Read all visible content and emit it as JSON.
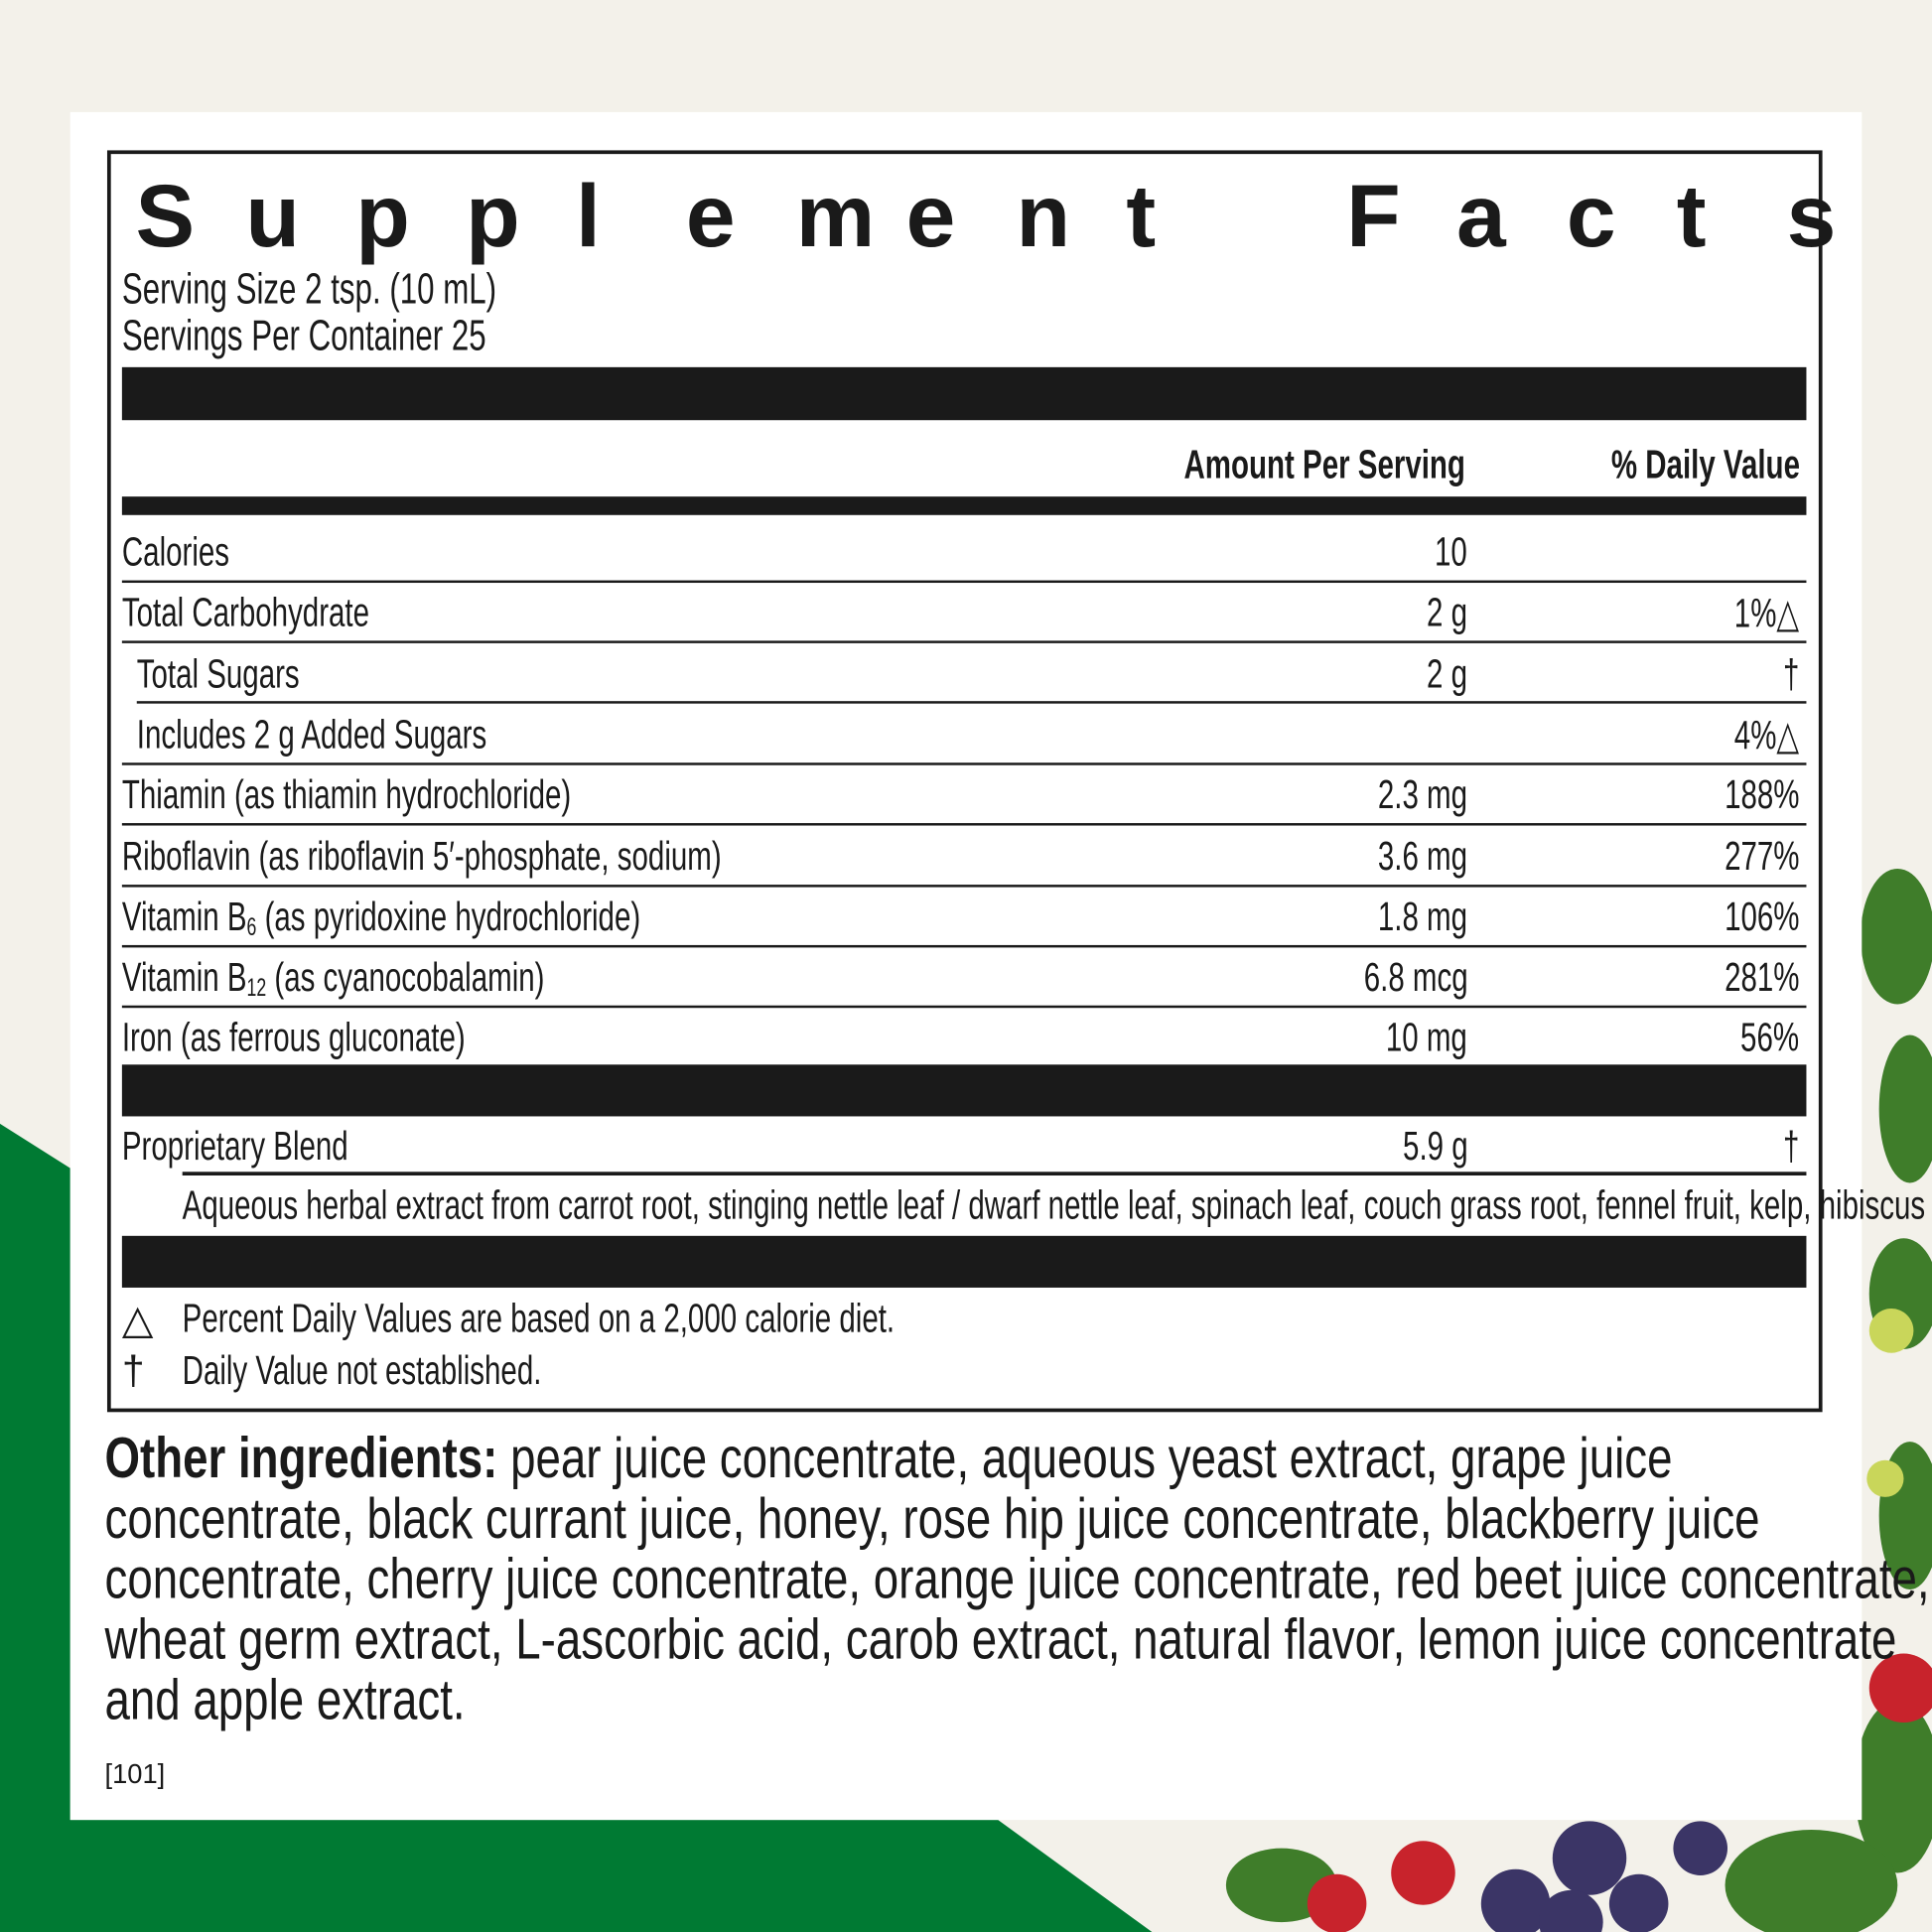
{
  "colors": {
    "background": "#f3f1ea",
    "green": "#007a33",
    "panel": "#ffffff",
    "ink": "#1a1a1a"
  },
  "title": "Supplement Facts",
  "serving_size": "Serving Size 2 tsp. (10 mL)",
  "servings_per_container": "Servings Per Container 25",
  "headers": {
    "amount": "Amount Per Serving",
    "daily_value": "% Daily Value"
  },
  "rows": [
    {
      "label": "Calories",
      "amount": "10",
      "dv": ""
    },
    {
      "label": "Total Carbohydrate",
      "amount": "2 g",
      "dv": "1%△"
    },
    {
      "label": "Total Sugars",
      "amount": "2 g",
      "dv": "†"
    },
    {
      "label": "Includes 2 g Added Sugars",
      "amount": "",
      "dv": "4%△"
    },
    {
      "label": "Thiamin (as thiamin hydrochloride)",
      "amount": "2.3 mg",
      "dv": "188%"
    },
    {
      "label": "Riboflavin (as riboflavin 5′-phosphate, sodium)",
      "amount": "3.6 mg",
      "dv": "277%"
    },
    {
      "label_pre": "Vitamin B",
      "label_sub": "6",
      "label_post": " (as pyridoxine hydrochloride)",
      "amount": "1.8 mg",
      "dv": "106%"
    },
    {
      "label_pre": "Vitamin B",
      "label_sub": "12",
      "label_post": " (as cyanocobalamin)",
      "amount": "6.8 mcg",
      "dv": "281%"
    },
    {
      "label": "Iron (as ferrous gluconate)",
      "amount": "10 mg",
      "dv": "56%"
    }
  ],
  "blend": {
    "label": "Proprietary Blend",
    "amount": "5.9 g",
    "dv": "†",
    "description": "Aqueous herbal extract from carrot root, stinging nettle leaf / dwarf nettle leaf, spinach leaf, couch grass root, fennel fruit, kelp, hibiscus flower"
  },
  "footnotes": [
    {
      "symbol": "△",
      "text": "Percent Daily Values are based on a 2,000 calorie diet."
    },
    {
      "symbol": "†",
      "text": "Daily Value not established."
    }
  ],
  "other_ingredients": {
    "label": "Other ingredients:",
    "lines": [
      " pear juice concentrate, aqueous yeast extract, grape juice",
      "concentrate, black currant juice, honey, rose hip juice concentrate, blackberry juice",
      "concentrate, cherry juice concentrate, orange juice concentrate, red beet juice concentrate,",
      "wheat germ extract, L-ascorbic acid, carob extract, natural flavor, lemon juice concentrate",
      "and apple extract."
    ]
  },
  "code": "[101]"
}
